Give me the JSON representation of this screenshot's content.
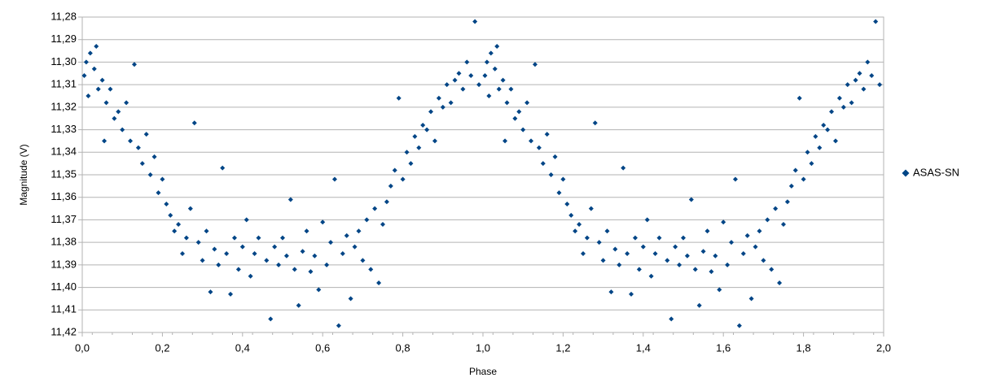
{
  "chart_data": {
    "type": "scatter",
    "x_label": "Phase",
    "y_label": "Magnitude (V)",
    "xlim": [
      0.0,
      2.0
    ],
    "xticks": [
      {
        "value": 0.0,
        "label": "0,0"
      },
      {
        "value": 0.2,
        "label": "0,2"
      },
      {
        "value": 0.4,
        "label": "0,4"
      },
      {
        "value": 0.6,
        "label": "0,6"
      },
      {
        "value": 0.8,
        "label": "0,8"
      },
      {
        "value": 1.0,
        "label": "1,0"
      },
      {
        "value": 1.2,
        "label": "1,2"
      },
      {
        "value": 1.4,
        "label": "1,4"
      },
      {
        "value": 1.6,
        "label": "1,6"
      },
      {
        "value": 1.8,
        "label": "1,8"
      },
      {
        "value": 2.0,
        "label": "2,0"
      }
    ],
    "ylim": [
      11.28,
      11.42
    ],
    "y_inverted": true,
    "yticks": [
      {
        "value": 11.28,
        "label": "11,28"
      },
      {
        "value": 11.29,
        "label": "11,29"
      },
      {
        "value": 11.3,
        "label": "11,30"
      },
      {
        "value": 11.31,
        "label": "11,31"
      },
      {
        "value": 11.32,
        "label": "11,32"
      },
      {
        "value": 11.33,
        "label": "11,33"
      },
      {
        "value": 11.34,
        "label": "11,34"
      },
      {
        "value": 11.35,
        "label": "11,35"
      },
      {
        "value": 11.36,
        "label": "11,36"
      },
      {
        "value": 11.37,
        "label": "11,37"
      },
      {
        "value": 11.38,
        "label": "11,38"
      },
      {
        "value": 11.39,
        "label": "11,39"
      },
      {
        "value": 11.4,
        "label": "11,40"
      },
      {
        "value": 11.41,
        "label": "11,41"
      },
      {
        "value": 11.42,
        "label": "11,42"
      }
    ],
    "grid": true,
    "legend": "right",
    "series": [
      {
        "name": "ASAS-SN",
        "color": "#004586",
        "x": [
          0.005,
          0.01,
          0.015,
          0.02,
          0.03,
          0.035,
          0.04,
          0.05,
          0.055,
          0.06,
          0.07,
          0.08,
          0.09,
          0.1,
          0.11,
          0.12,
          0.13,
          0.14,
          0.15,
          0.16,
          0.17,
          0.18,
          0.19,
          0.2,
          0.21,
          0.22,
          0.23,
          0.24,
          0.25,
          0.26,
          0.27,
          0.28,
          0.29,
          0.3,
          0.31,
          0.32,
          0.33,
          0.34,
          0.35,
          0.36,
          0.37,
          0.38,
          0.39,
          0.4,
          0.41,
          0.42,
          0.43,
          0.44,
          0.46,
          0.47,
          0.48,
          0.49,
          0.5,
          0.51,
          0.52,
          0.53,
          0.54,
          0.55,
          0.56,
          0.57,
          0.58,
          0.59,
          0.6,
          0.61,
          0.62,
          0.63,
          0.64,
          0.65,
          0.66,
          0.67,
          0.68,
          0.69,
          0.7,
          0.71,
          0.72,
          0.73,
          0.74,
          0.75,
          0.76,
          0.77,
          0.78,
          0.79,
          0.8,
          0.81,
          0.82,
          0.83,
          0.84,
          0.85,
          0.86,
          0.87,
          0.88,
          0.89,
          0.9,
          0.91,
          0.92,
          0.93,
          0.94,
          0.95,
          0.96,
          0.97,
          0.98,
          0.99,
          1.005,
          1.01,
          1.015,
          1.02,
          1.03,
          1.035,
          1.04,
          1.05,
          1.055,
          1.06,
          1.07,
          1.08,
          1.09,
          1.1,
          1.11,
          1.12,
          1.13,
          1.14,
          1.15,
          1.16,
          1.17,
          1.18,
          1.19,
          1.2,
          1.21,
          1.22,
          1.23,
          1.24,
          1.25,
          1.26,
          1.27,
          1.28,
          1.29,
          1.3,
          1.31,
          1.32,
          1.33,
          1.34,
          1.35,
          1.36,
          1.37,
          1.38,
          1.39,
          1.4,
          1.41,
          1.42,
          1.43,
          1.44,
          1.46,
          1.47,
          1.48,
          1.49,
          1.5,
          1.51,
          1.52,
          1.53,
          1.54,
          1.55,
          1.56,
          1.57,
          1.58,
          1.59,
          1.6,
          1.61,
          1.62,
          1.63,
          1.64,
          1.65,
          1.66,
          1.67,
          1.68,
          1.69,
          1.7,
          1.71,
          1.72,
          1.73,
          1.74,
          1.75,
          1.76,
          1.77,
          1.78,
          1.79,
          1.8,
          1.81,
          1.82,
          1.83,
          1.84,
          1.85,
          1.86,
          1.87,
          1.88,
          1.89,
          1.9,
          1.91,
          1.92,
          1.93,
          1.94,
          1.95,
          1.96,
          1.97,
          1.98,
          1.99
        ],
        "values": [
          11.306,
          11.3,
          11.315,
          11.296,
          11.303,
          11.293,
          11.312,
          11.308,
          11.335,
          11.318,
          11.312,
          11.325,
          11.322,
          11.33,
          11.318,
          11.335,
          11.301,
          11.338,
          11.345,
          11.332,
          11.35,
          11.342,
          11.358,
          11.352,
          11.363,
          11.368,
          11.375,
          11.372,
          11.385,
          11.378,
          11.365,
          11.327,
          11.38,
          11.388,
          11.375,
          11.402,
          11.383,
          11.39,
          11.347,
          11.385,
          11.403,
          11.378,
          11.392,
          11.382,
          11.37,
          11.395,
          11.385,
          11.378,
          11.388,
          11.414,
          11.382,
          11.39,
          11.378,
          11.386,
          11.361,
          11.392,
          11.408,
          11.384,
          11.375,
          11.393,
          11.386,
          11.401,
          11.371,
          11.39,
          11.38,
          11.352,
          11.417,
          11.385,
          11.377,
          11.405,
          11.382,
          11.375,
          11.388,
          11.37,
          11.392,
          11.365,
          11.398,
          11.372,
          11.362,
          11.355,
          11.348,
          11.316,
          11.352,
          11.34,
          11.345,
          11.333,
          11.338,
          11.328,
          11.33,
          11.322,
          11.335,
          11.316,
          11.32,
          11.31,
          11.318,
          11.308,
          11.305,
          11.312,
          11.3,
          11.306,
          11.282,
          11.31,
          11.306,
          11.3,
          11.315,
          11.296,
          11.303,
          11.293,
          11.312,
          11.308,
          11.335,
          11.318,
          11.312,
          11.325,
          11.322,
          11.33,
          11.318,
          11.335,
          11.301,
          11.338,
          11.345,
          11.332,
          11.35,
          11.342,
          11.358,
          11.352,
          11.363,
          11.368,
          11.375,
          11.372,
          11.385,
          11.378,
          11.365,
          11.327,
          11.38,
          11.388,
          11.375,
          11.402,
          11.383,
          11.39,
          11.347,
          11.385,
          11.403,
          11.378,
          11.392,
          11.382,
          11.37,
          11.395,
          11.385,
          11.378,
          11.388,
          11.414,
          11.382,
          11.39,
          11.378,
          11.386,
          11.361,
          11.392,
          11.408,
          11.384,
          11.375,
          11.393,
          11.386,
          11.401,
          11.371,
          11.39,
          11.38,
          11.352,
          11.417,
          11.385,
          11.377,
          11.405,
          11.382,
          11.375,
          11.388,
          11.37,
          11.392,
          11.365,
          11.398,
          11.372,
          11.362,
          11.355,
          11.348,
          11.316,
          11.352,
          11.34,
          11.345,
          11.333,
          11.338,
          11.328,
          11.33,
          11.322,
          11.335,
          11.316,
          11.32,
          11.31,
          11.318,
          11.308,
          11.305,
          11.312,
          11.3,
          11.306,
          11.282,
          11.31
        ]
      }
    ]
  }
}
